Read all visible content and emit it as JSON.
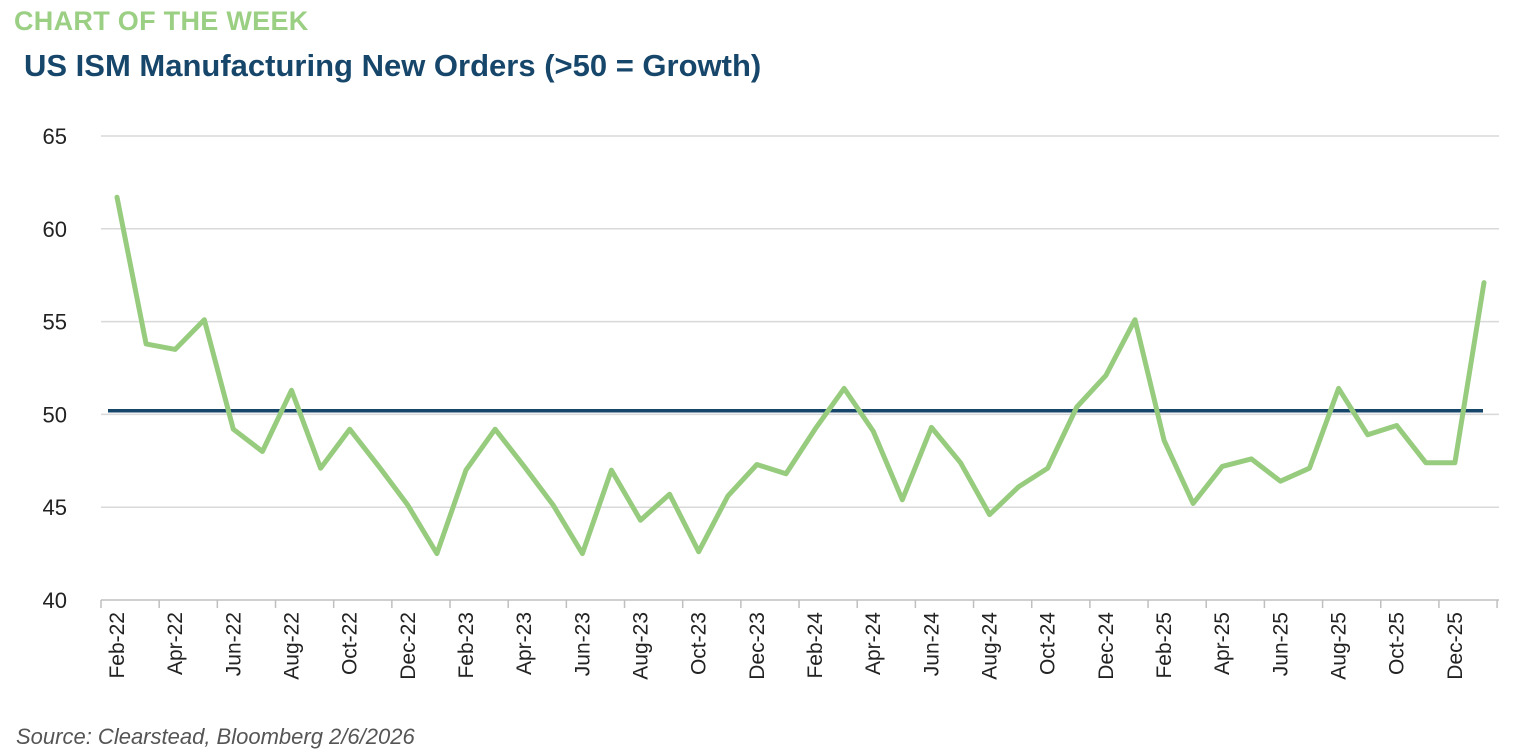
{
  "header": {
    "kicker": "CHART OF THE WEEK",
    "title": "US ISM Manufacturing New Orders (>50 = Growth)"
  },
  "footer": {
    "source": "Source: Clearstead, Bloomberg 2/6/2026"
  },
  "colors": {
    "series": "#97cc7e",
    "reference_line": "#17466b",
    "grid": "#d9d9d9",
    "kicker": "#9bcf83",
    "title": "#17466b"
  },
  "chart_data": {
    "type": "line",
    "title": "US ISM Manufacturing New Orders (>50 = Growth)",
    "xlabel": "",
    "ylabel": "",
    "ylim": [
      40,
      65
    ],
    "yticks": [
      40,
      45,
      50,
      55,
      60,
      65
    ],
    "grid": "horizontal",
    "reference_line": {
      "y": 50.2
    },
    "x": [
      "Feb-22",
      "Mar-22",
      "Apr-22",
      "May-22",
      "Jun-22",
      "Jul-22",
      "Aug-22",
      "Sep-22",
      "Oct-22",
      "Nov-22",
      "Dec-22",
      "Jan-23",
      "Feb-23",
      "Mar-23",
      "Apr-23",
      "May-23",
      "Jun-23",
      "Jul-23",
      "Aug-23",
      "Sep-23",
      "Oct-23",
      "Nov-23",
      "Dec-23",
      "Jan-24",
      "Feb-24",
      "Mar-24",
      "Apr-24",
      "May-24",
      "Jun-24",
      "Jul-24",
      "Aug-24",
      "Sep-24",
      "Oct-24",
      "Nov-24",
      "Dec-24",
      "Jan-25",
      "Feb-25",
      "Mar-25",
      "Apr-25",
      "May-25",
      "Jun-25",
      "Jul-25",
      "Aug-25",
      "Sep-25",
      "Oct-25",
      "Nov-25",
      "Dec-25",
      "Jan-26"
    ],
    "xtick_labels": [
      "Feb-22",
      "Apr-22",
      "Jun-22",
      "Aug-22",
      "Oct-22",
      "Dec-22",
      "Feb-23",
      "Apr-23",
      "Jun-23",
      "Aug-23",
      "Oct-23",
      "Dec-23",
      "Feb-24",
      "Apr-24",
      "Jun-24",
      "Aug-24",
      "Oct-24",
      "Dec-24",
      "Feb-25",
      "Apr-25",
      "Jun-25",
      "Aug-25",
      "Oct-25",
      "Dec-25"
    ],
    "series": [
      {
        "values": [
          61.7,
          53.8,
          53.5,
          55.1,
          49.2,
          48.0,
          51.3,
          47.1,
          49.2,
          47.2,
          45.1,
          42.5,
          47.0,
          49.2,
          47.2,
          45.1,
          42.5,
          47.0,
          44.3,
          45.7,
          42.6,
          45.6,
          47.3,
          46.8,
          49.2,
          51.4,
          49.1,
          45.4,
          49.3,
          47.4,
          44.6,
          46.1,
          47.1,
          50.4,
          52.1,
          55.1,
          48.6,
          45.2,
          47.2,
          47.6,
          46.4,
          47.1,
          51.4,
          48.9,
          49.4,
          47.4,
          47.4,
          57.1
        ]
      }
    ]
  }
}
